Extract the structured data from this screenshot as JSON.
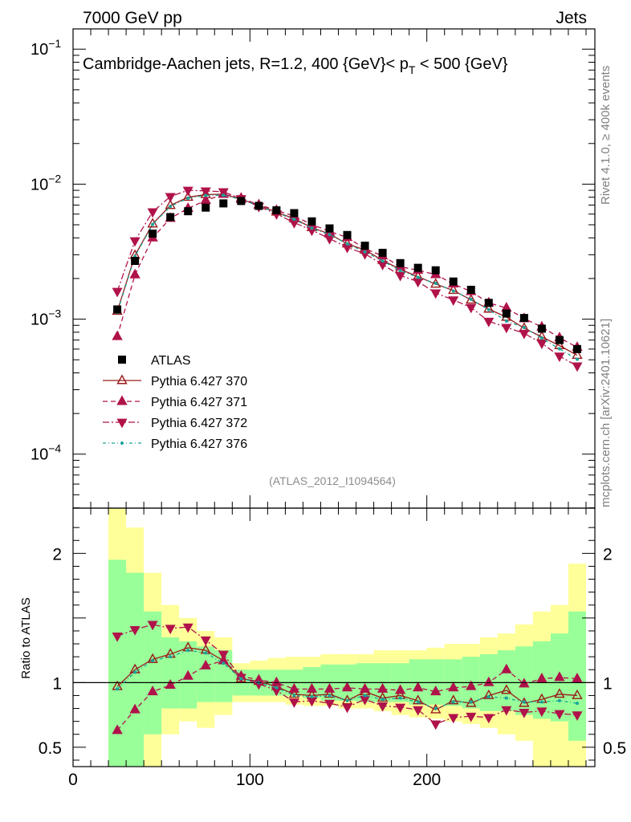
{
  "header": {
    "left": "7000 GeV pp",
    "right": "Jets"
  },
  "side_labels": {
    "rivet": "Rivet 4.1.0, ≥ 400k events",
    "mcplots": "mcplots.cern.ch [arXiv:2401.10621]"
  },
  "chart_data": {
    "type": "scatter",
    "title_main": "Cambridge-Aachen jets, R=1.2, 400 {GeV}< p",
    "title_sub": "T",
    "title_end": " < 500 {GeV}",
    "analysis_id": "(ATLAS_2012_I1094564)",
    "xlim": [
      0,
      295
    ],
    "main_ylim_log10": [
      -4.4,
      -0.85
    ],
    "ratio_ylim": [
      0.35,
      2.35
    ],
    "ratio_ylabel": "Ratio to ATLAS",
    "main_yticks": [
      {
        "exp": -1,
        "label": "10",
        "sup": "−1"
      },
      {
        "exp": -2,
        "label": "10",
        "sup": "−2"
      },
      {
        "exp": -3,
        "label": "10",
        "sup": "−3"
      },
      {
        "exp": -4,
        "label": "10",
        "sup": "−4"
      }
    ],
    "ratio_yticks": [
      {
        "value": 0.5,
        "label": "0.5"
      },
      {
        "value": 1,
        "label": "1"
      },
      {
        "value": 2,
        "label": "2"
      }
    ],
    "xticks": [
      {
        "value": 0,
        "label": "0"
      },
      {
        "value": 100,
        "label": "100"
      },
      {
        "value": 200,
        "label": "200"
      }
    ],
    "x": [
      25,
      35,
      45,
      55,
      65,
      75,
      85,
      95,
      105,
      115,
      125,
      135,
      145,
      155,
      165,
      175,
      185,
      195,
      205,
      215,
      225,
      235,
      245,
      255,
      265,
      275,
      285
    ],
    "data": {
      "name": "ATLAS",
      "values": [
        0.00118,
        0.0027,
        0.0043,
        0.0057,
        0.0063,
        0.0067,
        0.0072,
        0.0075,
        0.0069,
        0.0064,
        0.0061,
        0.0053,
        0.0047,
        0.0042,
        0.0035,
        0.0031,
        0.0026,
        0.0024,
        0.0023,
        0.0019,
        0.00165,
        0.00132,
        0.0011,
        0.00102,
        0.00085,
        0.0007,
        0.0006
      ]
    },
    "ratio_bands": {
      "inner": [
        [
          0.35,
          1.95
        ],
        [
          0.35,
          1.85
        ],
        [
          0.6,
          1.55
        ],
        [
          0.8,
          1.35
        ],
        [
          0.8,
          1.32
        ],
        [
          0.85,
          1.28
        ],
        [
          0.85,
          1.25
        ],
        [
          0.9,
          1.1
        ],
        [
          0.9,
          1.1
        ],
        [
          0.9,
          1.1
        ],
        [
          0.9,
          1.1
        ],
        [
          0.88,
          1.12
        ],
        [
          0.86,
          1.14
        ],
        [
          0.86,
          1.14
        ],
        [
          0.85,
          1.15
        ],
        [
          0.85,
          1.15
        ],
        [
          0.85,
          1.15
        ],
        [
          0.83,
          1.18
        ],
        [
          0.83,
          1.18
        ],
        [
          0.82,
          1.18
        ],
        [
          0.8,
          1.2
        ],
        [
          0.78,
          1.22
        ],
        [
          0.78,
          1.25
        ],
        [
          0.75,
          1.28
        ],
        [
          0.72,
          1.32
        ],
        [
          0.7,
          1.38
        ],
        [
          0.55,
          1.55
        ]
      ],
      "outer": [
        [
          0.35,
          2.35
        ],
        [
          0.35,
          2.2
        ],
        [
          0.35,
          1.85
        ],
        [
          0.6,
          1.6
        ],
        [
          0.7,
          1.5
        ],
        [
          0.65,
          1.4
        ],
        [
          0.75,
          1.35
        ],
        [
          0.85,
          1.15
        ],
        [
          0.85,
          1.17
        ],
        [
          0.85,
          1.19
        ],
        [
          0.83,
          1.2
        ],
        [
          0.82,
          1.2
        ],
        [
          0.82,
          1.22
        ],
        [
          0.8,
          1.22
        ],
        [
          0.8,
          1.22
        ],
        [
          0.78,
          1.25
        ],
        [
          0.75,
          1.25
        ],
        [
          0.73,
          1.25
        ],
        [
          0.72,
          1.27
        ],
        [
          0.7,
          1.3
        ],
        [
          0.68,
          1.3
        ],
        [
          0.65,
          1.35
        ],
        [
          0.6,
          1.38
        ],
        [
          0.55,
          1.45
        ],
        [
          0.35,
          1.55
        ],
        [
          0.35,
          1.6
        ],
        [
          0.35,
          1.92
        ]
      ]
    },
    "series": [
      {
        "name": "Pythia 6.427 370",
        "color": "#9a1a1a",
        "marker": "triangle-up-open",
        "line": "solid",
        "ratio": [
          0.97,
          1.1,
          1.18,
          1.22,
          1.27,
          1.25,
          1.17,
          1.03,
          1.01,
          0.97,
          0.91,
          0.9,
          0.91,
          0.86,
          0.93,
          0.88,
          0.9,
          0.86,
          0.79,
          0.86,
          0.84,
          0.9,
          0.94,
          0.84,
          0.87,
          0.91,
          0.9
        ]
      },
      {
        "name": "Pythia 6.427 371",
        "color": "#b0124a",
        "marker": "triangle-up-filled",
        "line": "dashed",
        "ratio": [
          0.63,
          0.79,
          0.93,
          0.98,
          1.05,
          1.13,
          1.17,
          1.05,
          1.02,
          1.0,
          0.95,
          0.95,
          0.95,
          0.96,
          0.95,
          0.95,
          0.94,
          0.96,
          0.93,
          0.96,
          0.97,
          1.0,
          1.1,
          0.99,
          1.03,
          1.04,
          1.03
        ]
      },
      {
        "name": "Pythia 6.427 372",
        "color": "#b0124a",
        "marker": "triangle-down-filled",
        "line": "dashdot",
        "ratio": [
          1.36,
          1.41,
          1.45,
          1.42,
          1.43,
          1.33,
          1.22,
          1.04,
          0.99,
          0.94,
          0.85,
          0.86,
          0.84,
          0.81,
          0.87,
          0.82,
          0.81,
          0.79,
          0.68,
          0.73,
          0.74,
          0.73,
          0.79,
          0.77,
          0.78,
          0.76,
          0.75
        ]
      },
      {
        "name": "Pythia 6.427 376",
        "color": "#1aa39a",
        "marker": "dot",
        "line": "dashdot-fine",
        "ratio": [
          0.95,
          1.08,
          1.17,
          1.2,
          1.25,
          1.23,
          1.15,
          1.03,
          1.0,
          0.96,
          0.9,
          0.89,
          0.9,
          0.86,
          0.9,
          0.87,
          0.88,
          0.85,
          0.8,
          0.85,
          0.85,
          0.89,
          0.88,
          0.85,
          0.85,
          0.86,
          0.84
        ]
      }
    ]
  }
}
